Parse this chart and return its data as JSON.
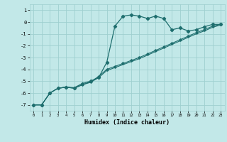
{
  "xlabel": "Humidex (Indice chaleur)",
  "bg_color": "#c2e8e8",
  "grid_color": "#9fcfcf",
  "line_color": "#1e6e6e",
  "xlim": [
    -0.5,
    23.5
  ],
  "ylim": [
    -7.5,
    1.5
  ],
  "yticks": [
    -7,
    -6,
    -5,
    -4,
    -3,
    -2,
    -1,
    0,
    1
  ],
  "xticks": [
    0,
    1,
    2,
    3,
    4,
    5,
    6,
    7,
    8,
    9,
    10,
    11,
    12,
    13,
    14,
    15,
    16,
    17,
    18,
    19,
    20,
    21,
    22,
    23
  ],
  "curve1_x": [
    0,
    1,
    2,
    3,
    4,
    5,
    6,
    7,
    8,
    9,
    10,
    11,
    12,
    13,
    14,
    15,
    16,
    17,
    18,
    19,
    20,
    21,
    22,
    23
  ],
  "curve1_y": [
    -7.0,
    -7.0,
    -6.0,
    -5.6,
    -5.5,
    -5.55,
    -5.2,
    -5.0,
    -4.7,
    -3.4,
    -0.35,
    0.5,
    0.6,
    0.5,
    0.3,
    0.5,
    0.3,
    -0.65,
    -0.5,
    -0.75,
    -0.65,
    -0.4,
    -0.2,
    -0.2
  ],
  "curve2_x": [
    0,
    1,
    2,
    3,
    4,
    5,
    6,
    7,
    8,
    9,
    10,
    11,
    12,
    13,
    14,
    15,
    16,
    17,
    18,
    19,
    20,
    21,
    22,
    23
  ],
  "curve2_y": [
    -7.0,
    -7.0,
    -6.0,
    -5.6,
    -5.5,
    -5.6,
    -5.3,
    -5.05,
    -4.6,
    -4.0,
    -3.75,
    -3.5,
    -3.25,
    -3.0,
    -2.7,
    -2.4,
    -2.1,
    -1.8,
    -1.5,
    -1.2,
    -0.9,
    -0.65,
    -0.35,
    -0.2
  ],
  "curve3_x": [
    0,
    1,
    2,
    3,
    4,
    5,
    6,
    7,
    8,
    9,
    10,
    11,
    12,
    13,
    14,
    15,
    16,
    17,
    18,
    19,
    20,
    21,
    22,
    23
  ],
  "curve3_y": [
    -7.0,
    -7.0,
    -6.0,
    -5.6,
    -5.5,
    -5.6,
    -5.3,
    -5.1,
    -4.7,
    -4.1,
    -3.85,
    -3.6,
    -3.35,
    -3.1,
    -2.8,
    -2.5,
    -2.2,
    -1.9,
    -1.6,
    -1.3,
    -1.0,
    -0.75,
    -0.45,
    -0.25
  ]
}
